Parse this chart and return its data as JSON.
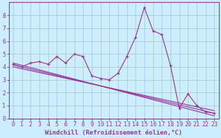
{
  "xlabel": "Windchill (Refroidissement éolien,°C)",
  "ylabel": "",
  "bg_color": "#cceeff",
  "line_color": "#993399",
  "grid_color": "#aacccc",
  "xlim": [
    -0.5,
    23.5
  ],
  "ylim": [
    0,
    9
  ],
  "xticks": [
    0,
    1,
    2,
    3,
    4,
    5,
    6,
    7,
    8,
    9,
    10,
    11,
    12,
    13,
    14,
    15,
    16,
    17,
    18,
    19,
    20,
    21,
    22,
    23
  ],
  "yticks": [
    0,
    1,
    2,
    3,
    4,
    5,
    6,
    7,
    8
  ],
  "main_x": [
    0,
    1,
    2,
    3,
    4,
    5,
    6,
    7,
    8,
    9,
    10,
    11,
    12,
    13,
    14,
    15,
    16,
    17,
    18,
    19,
    20,
    21,
    22,
    23
  ],
  "main_y": [
    4.2,
    4.0,
    4.3,
    4.4,
    4.2,
    4.8,
    4.3,
    5.0,
    4.8,
    3.3,
    3.1,
    3.0,
    3.5,
    4.8,
    6.3,
    8.6,
    6.8,
    6.5,
    4.1,
    0.8,
    1.9,
    1.0,
    0.5,
    0.4
  ],
  "trend1_x": [
    0,
    23
  ],
  "trend1_y": [
    4.3,
    0.2
  ],
  "trend2_x": [
    0,
    23
  ],
  "trend2_y": [
    4.15,
    0.4
  ],
  "trend3_x": [
    0,
    23
  ],
  "trend3_y": [
    4.0,
    0.6
  ],
  "font_family": "monospace",
  "xlabel_fontsize": 6.5,
  "tick_fontsize": 6.0
}
